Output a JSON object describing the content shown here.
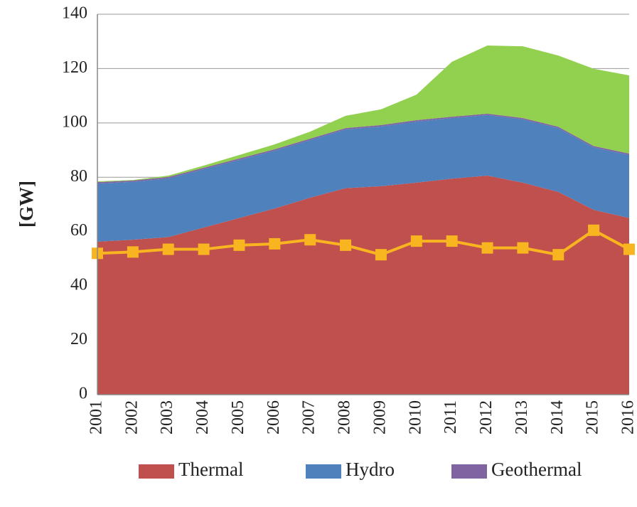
{
  "chart_data": {
    "type": "area",
    "ylabel": "[GW]",
    "categories": [
      "2001",
      "2002",
      "2003",
      "2004",
      "2005",
      "2006",
      "2007",
      "2008",
      "2009",
      "2010",
      "2011",
      "2012",
      "2013",
      "2014",
      "2015",
      "2016"
    ],
    "ylim": [
      0,
      140
    ],
    "yticks": [
      0,
      20,
      40,
      60,
      80,
      100,
      120,
      140
    ],
    "grid": true,
    "stacked": true,
    "series": [
      {
        "name": "Thermal",
        "color": "#c0504d",
        "values": [
          56.3,
          57,
          58,
          61.5,
          65,
          68.5,
          72.5,
          76,
          76.7,
          78,
          79.5,
          80.6,
          78,
          74.6,
          68,
          65
        ]
      },
      {
        "name": "Hydro",
        "color": "#4f81bd",
        "values": [
          21.4,
          21.3,
          21.6,
          21.5,
          21.4,
          21.3,
          21.2,
          21.6,
          22,
          22.5,
          22.3,
          22.3,
          23.3,
          23.5,
          23,
          23.2
        ]
      },
      {
        "name": "Geothermal",
        "color": "#8064a2",
        "values": [
          0.5,
          0.5,
          0.5,
          0.5,
          0.5,
          0.5,
          0.5,
          0.5,
          0.5,
          0.5,
          0.5,
          0.5,
          0.5,
          0.5,
          0.5,
          0.5
        ]
      },
      {
        "color": "#92d050",
        "values": [
          0.3,
          0.2,
          0.5,
          0.8,
          1.3,
          1.8,
          2.6,
          4.5,
          5.8,
          9.4,
          20.2,
          25.1,
          26.4,
          26.2,
          28.4,
          28.8
        ]
      },
      {
        "type": "line",
        "color": "#f9b51f",
        "values": [
          52,
          52.5,
          53.5,
          53.5,
          55,
          55.5,
          57,
          55,
          51.5,
          56.5,
          56.5,
          54,
          54,
          51.5,
          60.5,
          53.5
        ]
      }
    ]
  }
}
